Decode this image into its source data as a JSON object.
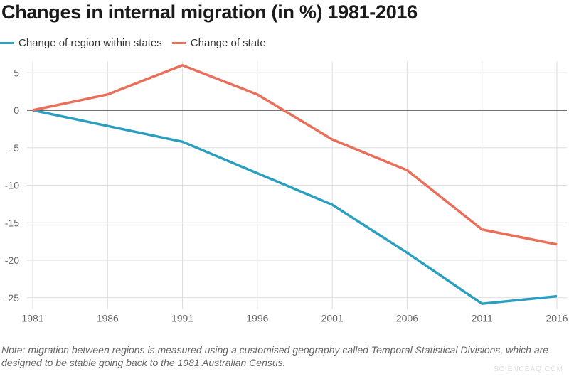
{
  "chart_data": {
    "type": "line",
    "title": "Changes in internal migration (in %) 1981-2016",
    "x": [
      1981,
      1986,
      1991,
      1996,
      2001,
      2006,
      2011,
      2016
    ],
    "x_tick_labels": [
      "1981",
      "1986",
      "1991",
      "1996",
      "2001",
      "2006",
      "2011",
      "2016"
    ],
    "y_tick_values": [
      5,
      0,
      -5,
      -10,
      -15,
      -20,
      -25
    ],
    "y_tick_labels": [
      "5",
      "0",
      "-5",
      "-10",
      "-15",
      "-20",
      "-25"
    ],
    "ylim": [
      -26.5,
      6.5
    ],
    "grid": true,
    "legend_placement": "top-left",
    "series": [
      {
        "name": "Change of region within states",
        "color": "#2a9fc0",
        "values": [
          0,
          -2.1,
          -4.2,
          -8.4,
          -12.6,
          -19.0,
          -25.8,
          -24.8
        ]
      },
      {
        "name": "Change of state",
        "color": "#ea6f5a",
        "values": [
          0,
          2.1,
          6.0,
          2.1,
          -3.9,
          -8.0,
          -15.9,
          -17.9
        ]
      }
    ]
  },
  "note": "Note: migration between regions is measured using a customised geography called Temporal Statistical Divisions, which are designed to be stable going back to the 1981 Australian Census.",
  "watermark": "SCIENCEAQ.COM"
}
